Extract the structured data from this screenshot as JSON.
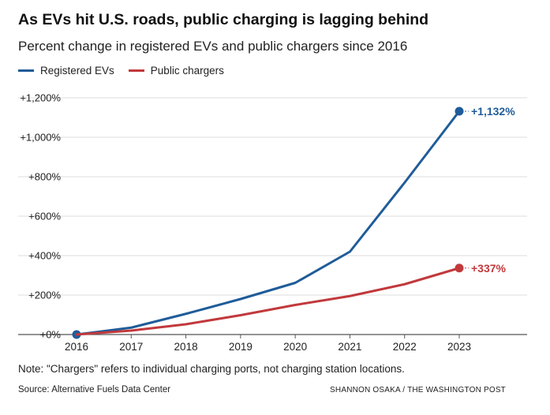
{
  "chart_data": {
    "type": "line",
    "title": "As EVs hit U.S. roads, public charging is lagging behind",
    "subtitle": "Percent change in registered EVs and public chargers since 2016",
    "x": [
      "2016",
      "2017",
      "2018",
      "2019",
      "2020",
      "2021",
      "2022",
      "2023"
    ],
    "series": [
      {
        "name": "Registered EVs",
        "color": "#1f5c99",
        "values": [
          0,
          35,
          105,
          180,
          262,
          420,
          770,
          1132
        ],
        "end_label": "+1,132%"
      },
      {
        "name": "Public chargers",
        "color": "#c1393c",
        "values": [
          0,
          20,
          52,
          98,
          150,
          195,
          255,
          337
        ],
        "end_label": "+337%"
      }
    ],
    "ylim": [
      0,
      1200
    ],
    "yticks": [
      0,
      200,
      400,
      600,
      800,
      1000,
      1200
    ],
    "ytick_labels": [
      "+0%",
      "+200%",
      "+400%",
      "+600%",
      "+800%",
      "+1,000%",
      "+1,200%"
    ],
    "grid": true,
    "legend": "top-left"
  },
  "note": "Note: \"Chargers\" refers to individual charging ports, not charging station locations.",
  "source": "Source: Alternative Fuels Data Center",
  "credit": "SHANNON OSAKA / THE WASHINGTON POST"
}
